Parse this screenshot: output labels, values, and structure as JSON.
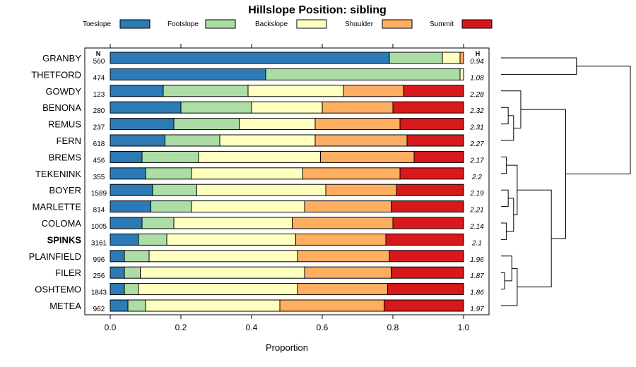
{
  "chart_data": {
    "type": "bar",
    "orientation": "horizontal",
    "stacked": true,
    "title": "Hillslope Position: sibling",
    "xlabel": "Proportion",
    "ylabel": "",
    "xlim": [
      0,
      1
    ],
    "x_ticks": [
      "0.0",
      "0.2",
      "0.4",
      "0.6",
      "0.8",
      "1.0"
    ],
    "legend_position": "top",
    "legend": [
      {
        "name": "Toeslope",
        "color": "#2c7bb6"
      },
      {
        "name": "Footslope",
        "color": "#abdda4"
      },
      {
        "name": "Backslope",
        "color": "#ffffbf"
      },
      {
        "name": "Shoulder",
        "color": "#fdae61"
      },
      {
        "name": "Summit",
        "color": "#d7191c"
      }
    ],
    "n_header": "N",
    "h_header": "H",
    "categories": [
      "GRANBY",
      "THETFORD",
      "GOWDY",
      "BENONA",
      "REMUS",
      "FERN",
      "BREMS",
      "TEKENINK",
      "BOYER",
      "MARLETTE",
      "COLOMA",
      "SPINKS",
      "PLAINFIELD",
      "FILER",
      "OSHTEMO",
      "METEA"
    ],
    "highlight": "SPINKS",
    "n": [
      "560",
      "474",
      "123",
      "280",
      "237",
      "618",
      "456",
      "355",
      "1589",
      "814",
      "1005",
      "3161",
      "996",
      "256",
      "1843",
      "962"
    ],
    "H": [
      "0.94",
      "1.08",
      "2.28",
      "2.32",
      "2.31",
      "2.27",
      "2.17",
      "2.2",
      "2.19",
      "2.21",
      "2.14",
      "2.1",
      "1.96",
      "1.87",
      "1.86",
      "1.97"
    ],
    "series": [
      {
        "name": "Toeslope",
        "values": [
          0.79,
          0.44,
          0.15,
          0.2,
          0.18,
          0.155,
          0.09,
          0.1,
          0.12,
          0.115,
          0.09,
          0.08,
          0.04,
          0.04,
          0.04,
          0.05
        ]
      },
      {
        "name": "Footslope",
        "values": [
          0.15,
          0.55,
          0.24,
          0.2,
          0.185,
          0.155,
          0.16,
          0.13,
          0.125,
          0.115,
          0.09,
          0.08,
          0.07,
          0.045,
          0.04,
          0.05
        ]
      },
      {
        "name": "Backslope",
        "values": [
          0.05,
          0.01,
          0.27,
          0.2,
          0.215,
          0.27,
          0.345,
          0.315,
          0.365,
          0.32,
          0.335,
          0.365,
          0.42,
          0.465,
          0.45,
          0.38
        ]
      },
      {
        "name": "Shoulder",
        "values": [
          0.01,
          0.0,
          0.17,
          0.2,
          0.24,
          0.26,
          0.265,
          0.275,
          0.2,
          0.245,
          0.285,
          0.255,
          0.26,
          0.245,
          0.255,
          0.295
        ]
      },
      {
        "name": "Summit",
        "values": [
          0.0,
          0.0,
          0.17,
          0.2,
          0.18,
          0.16,
          0.14,
          0.18,
          0.19,
          0.205,
          0.2,
          0.22,
          0.21,
          0.205,
          0.215,
          0.225
        ]
      }
    ],
    "dendrogram": {
      "leaf_order": [
        "GRANBY",
        "THETFORD",
        "GOWDY",
        "BENONA",
        "REMUS",
        "FERN",
        "BREMS",
        "TEKENINK",
        "BOYER",
        "MARLETTE",
        "COLOMA",
        "SPINKS",
        "PLAINFIELD",
        "FILER",
        "OSHTEMO",
        "METEA"
      ],
      "merges": [
        {
          "a": "BENONA",
          "b": "REMUS",
          "height": 0.02
        },
        {
          "a": "BENONA+REMUS",
          "b": "FERN",
          "height": 0.035
        },
        {
          "a": "BREMS",
          "b": "TEKENINK",
          "height": 0.015
        },
        {
          "a": "BOYER",
          "b": "MARLETTE",
          "height": 0.02
        },
        {
          "a": "COLOMA",
          "b": "SPINKS",
          "height": 0.015
        },
        {
          "a": "BOYER+MARLETTE",
          "b": "COLOMA+SPINKS",
          "height": 0.035
        },
        {
          "a": "BREMS+TEKENINK",
          "b": "BOYER+MARLETTE+COLOMA+SPINKS",
          "height": 0.045
        },
        {
          "a": "FILER",
          "b": "OSHTEMO",
          "height": 0.01
        },
        {
          "a": "FILER+OSHTEMO",
          "b": "PLAINFIELD",
          "height": 0.03
        },
        {
          "a": "PLAINFIELD+FILER+OSHTEMO",
          "b": "METEA",
          "height": 0.045
        },
        {
          "a": "BREMS..SPINKS",
          "b": "PLAINFIELD..METEA",
          "height": 0.14
        },
        {
          "a": "GOWDY",
          "b": "BENONA+REMUS+FERN",
          "height": 0.055
        },
        {
          "a": "GOWDY..FERN",
          "b": "BREMS..METEA",
          "height": 0.18
        },
        {
          "a": "GRANBY",
          "b": "THETFORD",
          "height": 0.21
        },
        {
          "a": "GRANBY+THETFORD",
          "b": "GOWDY..METEA",
          "height": 0.36
        }
      ]
    }
  }
}
